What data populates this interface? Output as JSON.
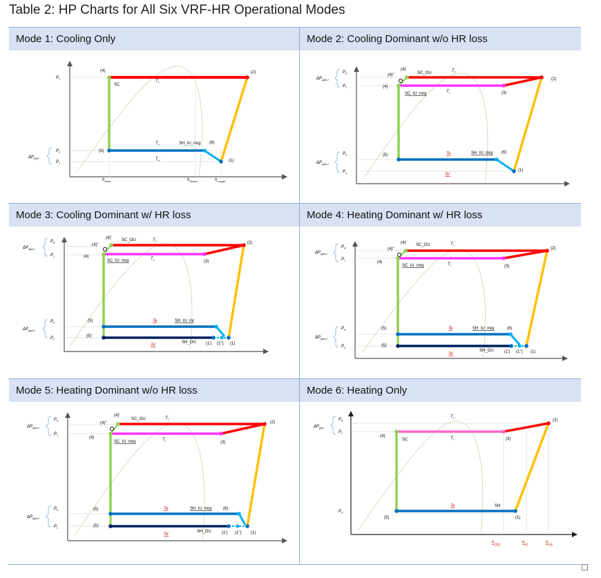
{
  "caption": "Table 2: HP Charts for All Six VRF-HR Operational Modes",
  "modes": [
    {
      "title": "Mode 1: Cooling Only",
      "axis": {
        "dp": "ΔP",
        "dp_sub": "pipe",
        "pd": "P",
        "pd_sub": "c",
        "pe": "P",
        "pe_sub": "e",
        "ps": "P",
        "ps_sub": "s"
      },
      "points": {
        "p4": "(4)",
        "p2": "(2)",
        "p5": "(5)",
        "p6": "(6)",
        "p1": "(1)"
      },
      "labels": {
        "sc": "SC",
        "tc": "T",
        "tc_sub": "c",
        "te": "T",
        "te_sub": "e",
        "te2": "T",
        "te2_sub": "e",
        "te2_sup": "'",
        "sh": "SH_IU_mrg"
      },
      "hlabels": {
        "h1": "h",
        "h1_sub": "Hexin",
        "h2": "h",
        "h2_sub": "Hexout",
        "h3": "h",
        "h3_sub": "Compin"
      }
    },
    {
      "title": "Mode 2: Cooling Dominant w/o HR loss",
      "axis": {
        "dp1": "ΔP",
        "dp1_sub": "pipe-1",
        "dp2": "ΔP",
        "dp2_sub": "pipe-2",
        "pd": "P",
        "pd_sub": "d",
        "pc": "P",
        "pc_sub": "c",
        "pe": "P",
        "pe_sub": "e",
        "ps": "P",
        "ps_sub": "s"
      },
      "points": {
        "p4a": "(4)'",
        "p4b": "(4)''",
        "p4": "(4)",
        "p2": "(2)",
        "p3": "(3)",
        "p5": "(5)",
        "p6": "(6)",
        "p1": "(1)"
      },
      "labels": {
        "scou": "SC_OU",
        "tc1": "T",
        "tc1_sub": "c",
        "tc1_sup": "'",
        "sciu": "SC_IU_mrg",
        "tc": "T",
        "tc_sub": "c",
        "te": "Te",
        "sh": "SH_IU_mrg",
        "te2": "Te'"
      }
    },
    {
      "title": "Mode 3: Cooling Dominant w/ HR loss",
      "axis": {
        "dp1": "ΔP",
        "dp1_sub": "pipe-1",
        "dp2": "ΔP",
        "dp2_sub": "pipe-2",
        "pd": "P",
        "pd_sub": "d",
        "pc": "P",
        "pc_sub": "c",
        "pe": "P",
        "pe_sub": "e",
        "ps": "P",
        "ps_sub": "s"
      },
      "points": {
        "p4a": "(4)'",
        "p4b": "(4)''",
        "p4": "(4)",
        "p2": "(2)",
        "p3": "(3)",
        "p5": "(5)",
        "p5b": "(5)'",
        "p1a": "(1')",
        "p1b": "(1'')",
        "p1": "(1)"
      },
      "labels": {
        "scou": "SC_OU",
        "tc1": "T",
        "tc1_sub": "c",
        "tc1_sup": "'",
        "sciu": "SC_IU_mrg",
        "tc": "T",
        "tc_sub": "c",
        "te": "Te",
        "sh": "SH_IU_mr",
        "te2": "Te'",
        "shou": "SH_OU"
      }
    },
    {
      "title": "Mode 4: Heating Dominant w/ HR loss",
      "axis": {
        "dp1": "ΔP",
        "dp1_sub": "pipe-1",
        "dp2": "ΔP",
        "dp2_sub": "pipe-2",
        "pd": "P",
        "pd_sub": "d",
        "pc": "P",
        "pc_sub": "c",
        "pe": "P",
        "pe_sub": "e",
        "ps": "P",
        "ps_sub": "s"
      },
      "points": {
        "p4a": "(4)'",
        "p4b": "(4)''",
        "p4": "(4)",
        "p2": "(2)",
        "p3": "(3)",
        "p5": "(5)",
        "p5b": "(5)'",
        "p6": "(6)",
        "p1a": "(1')",
        "p1b": "(1'')",
        "p1": "(1)"
      },
      "labels": {
        "scou": "SC_OU",
        "tc1": "T",
        "tc1_sub": "c",
        "tc1_sup": "'",
        "sciu": "SC_IU_mrg",
        "tc": "T",
        "tc_sub": "c",
        "te": "Te",
        "sh": "SH_IU_mrg",
        "te2": "Te'",
        "shou": "SH_OU"
      }
    },
    {
      "title": "Mode 5: Heating Dominant w/o HR loss",
      "axis": {
        "dp1": "ΔP",
        "dp1_sub": "pipe-1",
        "dp2": "ΔP",
        "dp2_sub": "pipe-2",
        "pd": "P",
        "pd_sub": "d",
        "pc": "P",
        "pc_sub": "c",
        "pe": "P",
        "pe_sub": "e",
        "ps": "P",
        "ps_sub": "s"
      },
      "points": {
        "p4a": "(4)'",
        "p4b": "(4)''",
        "p4": "(4)",
        "p2": "(2)",
        "p3": "(3)",
        "p5": "(5)",
        "p5b": "(5)'",
        "p6": "(6)",
        "p1a": "(1')",
        "p1b": "(1'')",
        "p1": "(1)"
      },
      "labels": {
        "scou": "SC_OU",
        "tc1": "T",
        "tc1_sub": "c",
        "tc1_sup": "'",
        "sciu": "SC_IU_mrg",
        "tc": "T",
        "tc_sub": "c",
        "te": "Te",
        "sh": "SH_IU_mrg",
        "te2": "Te'",
        "shou": "SH_OU"
      }
    },
    {
      "title": "Mode 6: Heating Only",
      "axis": {
        "dp": "ΔP",
        "dp_sub": "pipe",
        "pd": "P",
        "pd_sub": "d",
        "pc": "P",
        "pc_sub": "c",
        "pe": "P",
        "pe_sub": "e"
      },
      "points": {
        "p4": "(4)",
        "p2": "(2)",
        "p3": "(3)",
        "p5": "(5)",
        "p1": "(1)"
      },
      "labels": {
        "sc": "SC",
        "tc1": "T",
        "tc1_sub": "c",
        "tc1_sup": "'",
        "tc": "T",
        "tc_sub": "c",
        "te": "Te",
        "sh": "SH"
      },
      "hlabels": {
        "h1": "h",
        "h1_sub": "Hexin",
        "h2": "h",
        "h2_sub": "out",
        "h3": "h",
        "h3_sub": "cmp"
      }
    }
  ],
  "colors": {
    "red": "#ff0000",
    "green": "#92d050",
    "blue": "#0070c0",
    "orange": "#ffc000",
    "magenta": "#ff33ff",
    "pink": "#ff66cc",
    "navy": "#002060",
    "cyan": "#00b0f0",
    "header_bg": "#d9e2f3",
    "border": "#8eaadb",
    "dome": "#c8d6b0"
  }
}
